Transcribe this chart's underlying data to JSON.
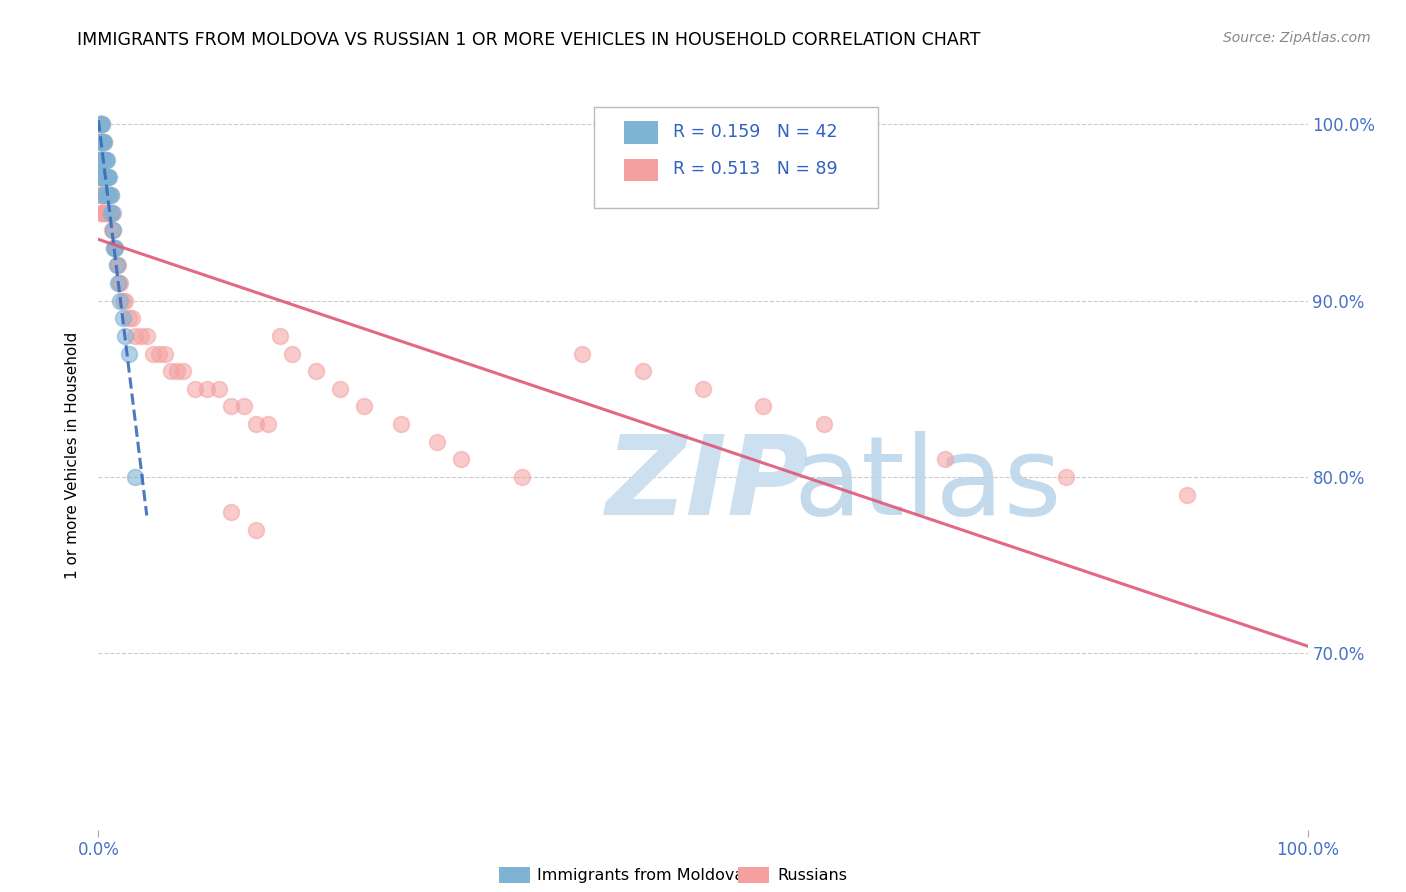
{
  "title": "IMMIGRANTS FROM MOLDOVA VS RUSSIAN 1 OR MORE VEHICLES IN HOUSEHOLD CORRELATION CHART",
  "source": "Source: ZipAtlas.com",
  "ylabel": "1 or more Vehicles in Household",
  "legend1_label": "Immigrants from Moldova",
  "legend2_label": "Russians",
  "r_moldova": 0.159,
  "n_moldova": 42,
  "r_russian": 0.513,
  "n_russian": 89,
  "moldova_color": "#7fb3d3",
  "russian_color": "#f4a0a0",
  "moldova_line_color": "#3a6abf",
  "russian_line_color": "#e05878",
  "watermark_zip_color": "#cce0f0",
  "watermark_atlas_color": "#b8d4e8",
  "xlim": [
    0.0,
    1.0
  ],
  "ylim": [
    0.6,
    1.025
  ],
  "ytick_vals": [
    1.0,
    0.9,
    0.8,
    0.7
  ],
  "ytick_labels": [
    "100.0%",
    "90.0%",
    "80.0%",
    "70.0%"
  ],
  "mol_x": [
    0.001,
    0.001,
    0.001,
    0.001,
    0.002,
    0.002,
    0.002,
    0.002,
    0.003,
    0.003,
    0.003,
    0.003,
    0.004,
    0.004,
    0.004,
    0.004,
    0.005,
    0.005,
    0.005,
    0.006,
    0.006,
    0.006,
    0.007,
    0.007,
    0.007,
    0.008,
    0.008,
    0.009,
    0.009,
    0.01,
    0.01,
    0.011,
    0.012,
    0.013,
    0.014,
    0.015,
    0.016,
    0.018,
    0.02,
    0.022,
    0.025,
    0.03
  ],
  "mol_y": [
    1.0,
    0.99,
    0.98,
    0.97,
    1.0,
    0.99,
    0.98,
    0.97,
    1.0,
    0.99,
    0.98,
    0.97,
    0.99,
    0.98,
    0.97,
    0.96,
    0.99,
    0.98,
    0.97,
    0.98,
    0.97,
    0.96,
    0.98,
    0.97,
    0.96,
    0.97,
    0.96,
    0.97,
    0.96,
    0.96,
    0.95,
    0.95,
    0.94,
    0.93,
    0.93,
    0.92,
    0.91,
    0.9,
    0.89,
    0.88,
    0.87,
    0.8
  ],
  "rus_x": [
    0.001,
    0.001,
    0.001,
    0.001,
    0.001,
    0.002,
    0.002,
    0.002,
    0.002,
    0.002,
    0.002,
    0.003,
    0.003,
    0.003,
    0.003,
    0.003,
    0.003,
    0.004,
    0.004,
    0.004,
    0.004,
    0.004,
    0.005,
    0.005,
    0.005,
    0.005,
    0.005,
    0.006,
    0.006,
    0.006,
    0.006,
    0.007,
    0.007,
    0.007,
    0.008,
    0.008,
    0.008,
    0.009,
    0.009,
    0.01,
    0.01,
    0.011,
    0.012,
    0.012,
    0.013,
    0.014,
    0.015,
    0.016,
    0.017,
    0.018,
    0.02,
    0.022,
    0.025,
    0.028,
    0.03,
    0.035,
    0.04,
    0.045,
    0.05,
    0.055,
    0.06,
    0.065,
    0.07,
    0.08,
    0.09,
    0.1,
    0.11,
    0.12,
    0.13,
    0.14,
    0.15,
    0.16,
    0.18,
    0.2,
    0.22,
    0.25,
    0.28,
    0.3,
    0.35,
    0.4,
    0.45,
    0.5,
    0.55,
    0.6,
    0.7,
    0.8,
    0.9,
    0.11,
    0.13
  ],
  "rus_y": [
    1.0,
    0.99,
    0.98,
    0.97,
    0.96,
    1.0,
    0.99,
    0.98,
    0.97,
    0.96,
    0.95,
    1.0,
    0.99,
    0.98,
    0.97,
    0.96,
    0.95,
    0.99,
    0.98,
    0.97,
    0.96,
    0.95,
    0.99,
    0.98,
    0.97,
    0.96,
    0.95,
    0.98,
    0.97,
    0.96,
    0.95,
    0.97,
    0.96,
    0.95,
    0.97,
    0.96,
    0.95,
    0.96,
    0.95,
    0.96,
    0.95,
    0.94,
    0.95,
    0.94,
    0.93,
    0.93,
    0.92,
    0.92,
    0.91,
    0.91,
    0.9,
    0.9,
    0.89,
    0.89,
    0.88,
    0.88,
    0.88,
    0.87,
    0.87,
    0.87,
    0.86,
    0.86,
    0.86,
    0.85,
    0.85,
    0.85,
    0.84,
    0.84,
    0.83,
    0.83,
    0.88,
    0.87,
    0.86,
    0.85,
    0.84,
    0.83,
    0.82,
    0.81,
    0.8,
    0.87,
    0.86,
    0.85,
    0.84,
    0.83,
    0.81,
    0.8,
    0.79,
    0.78,
    0.77
  ]
}
